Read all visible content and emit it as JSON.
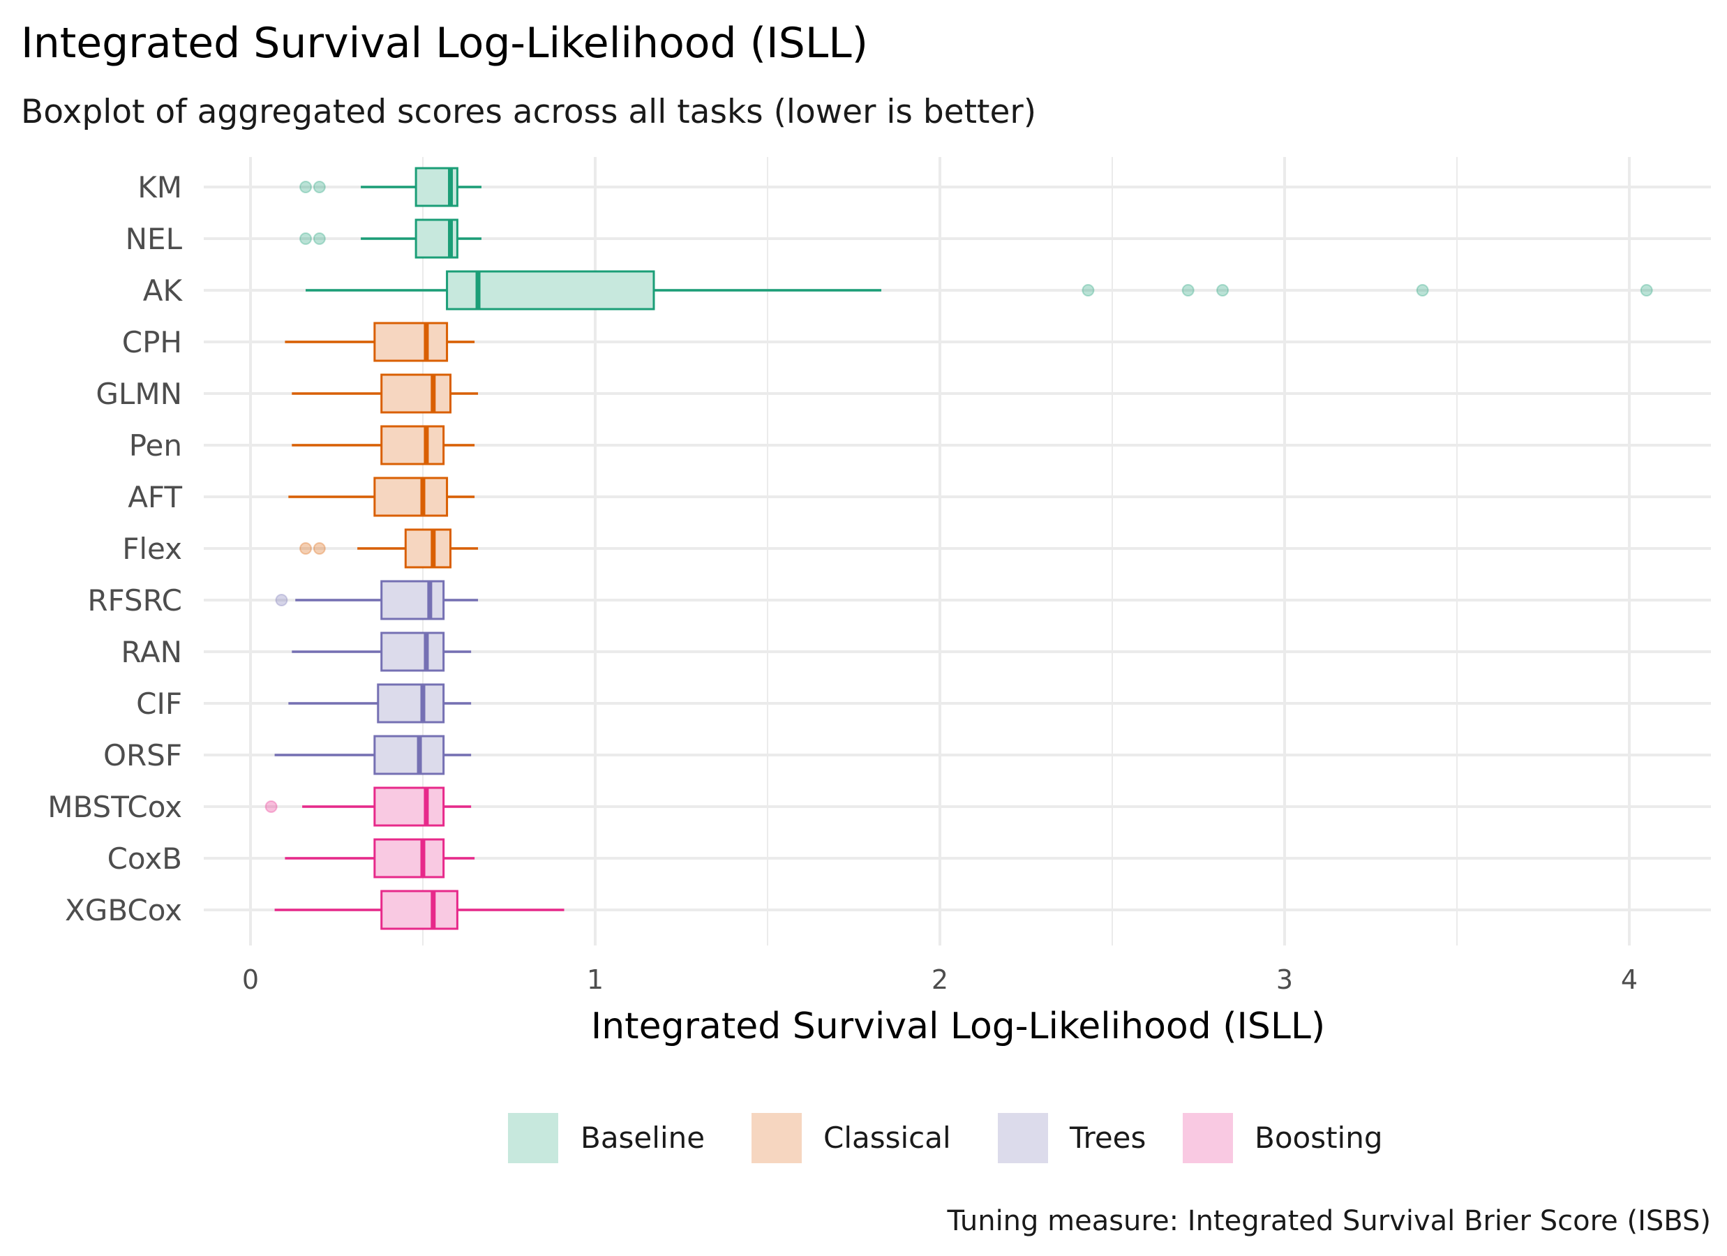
{
  "chart_data": {
    "type": "boxplot",
    "title": "Integrated Survival Log-Likelihood (ISLL)",
    "subtitle": "Boxplot of aggregated scores across all tasks (lower is better)",
    "xlabel": "Integrated Survival Log-Likelihood (ISLL)",
    "ylabel": "",
    "caption": "Tuning measure: Integrated Survival Brier Score (ISBS)",
    "xlim": [
      -0.12,
      4.25
    ],
    "x_ticks": [
      "0",
      "1",
      "2",
      "3",
      "4"
    ],
    "x_tick_values": [
      0,
      1,
      2,
      3,
      4
    ],
    "grid": true,
    "legend_position": "bottom",
    "groups": [
      {
        "name": "Baseline",
        "color": "#1b9e77",
        "fill": "#c7e8dd"
      },
      {
        "name": "Classical",
        "color": "#d95f02",
        "fill": "#f6d6c0"
      },
      {
        "name": "Trees",
        "color": "#7570b3",
        "fill": "#dcdbeb"
      },
      {
        "name": "Boosting",
        "color": "#e7298a",
        "fill": "#f9c9e2"
      }
    ],
    "boxes": [
      {
        "label": "KM",
        "group": "Baseline",
        "whisker_low": 0.32,
        "q1": 0.48,
        "median": 0.58,
        "q3": 0.6,
        "whisker_high": 0.67,
        "outliers": [
          0.16,
          0.2
        ]
      },
      {
        "label": "NEL",
        "group": "Baseline",
        "whisker_low": 0.32,
        "q1": 0.48,
        "median": 0.58,
        "q3": 0.6,
        "whisker_high": 0.67,
        "outliers": [
          0.16,
          0.2
        ]
      },
      {
        "label": "AK",
        "group": "Baseline",
        "whisker_low": 0.16,
        "q1": 0.57,
        "median": 0.66,
        "q3": 1.17,
        "whisker_high": 1.83,
        "outliers": [
          2.43,
          2.72,
          2.82,
          3.4,
          4.05
        ]
      },
      {
        "label": "CPH",
        "group": "Classical",
        "whisker_low": 0.1,
        "q1": 0.36,
        "median": 0.51,
        "q3": 0.57,
        "whisker_high": 0.65,
        "outliers": []
      },
      {
        "label": "GLMN",
        "group": "Classical",
        "whisker_low": 0.12,
        "q1": 0.38,
        "median": 0.53,
        "q3": 0.58,
        "whisker_high": 0.66,
        "outliers": []
      },
      {
        "label": "Pen",
        "group": "Classical",
        "whisker_low": 0.12,
        "q1": 0.38,
        "median": 0.51,
        "q3": 0.56,
        "whisker_high": 0.65,
        "outliers": []
      },
      {
        "label": "AFT",
        "group": "Classical",
        "whisker_low": 0.11,
        "q1": 0.36,
        "median": 0.5,
        "q3": 0.57,
        "whisker_high": 0.65,
        "outliers": []
      },
      {
        "label": "Flex",
        "group": "Classical",
        "whisker_low": 0.31,
        "q1": 0.45,
        "median": 0.53,
        "q3": 0.58,
        "whisker_high": 0.66,
        "outliers": [
          0.16,
          0.2
        ]
      },
      {
        "label": "RFSRC",
        "group": "Trees",
        "whisker_low": 0.13,
        "q1": 0.38,
        "median": 0.52,
        "q3": 0.56,
        "whisker_high": 0.66,
        "outliers": [
          0.09
        ]
      },
      {
        "label": "RAN",
        "group": "Trees",
        "whisker_low": 0.12,
        "q1": 0.38,
        "median": 0.51,
        "q3": 0.56,
        "whisker_high": 0.64,
        "outliers": []
      },
      {
        "label": "CIF",
        "group": "Trees",
        "whisker_low": 0.11,
        "q1": 0.37,
        "median": 0.5,
        "q3": 0.56,
        "whisker_high": 0.64,
        "outliers": []
      },
      {
        "label": "ORSF",
        "group": "Trees",
        "whisker_low": 0.07,
        "q1": 0.36,
        "median": 0.49,
        "q3": 0.56,
        "whisker_high": 0.64,
        "outliers": []
      },
      {
        "label": "MBSTCox",
        "group": "Boosting",
        "whisker_low": 0.15,
        "q1": 0.36,
        "median": 0.51,
        "q3": 0.56,
        "whisker_high": 0.64,
        "outliers": [
          0.06
        ]
      },
      {
        "label": "CoxB",
        "group": "Boosting",
        "whisker_low": 0.1,
        "q1": 0.36,
        "median": 0.5,
        "q3": 0.56,
        "whisker_high": 0.65,
        "outliers": []
      },
      {
        "label": "XGBCox",
        "group": "Boosting",
        "whisker_low": 0.07,
        "q1": 0.38,
        "median": 0.53,
        "q3": 0.6,
        "whisker_high": 0.91,
        "outliers": []
      }
    ]
  }
}
